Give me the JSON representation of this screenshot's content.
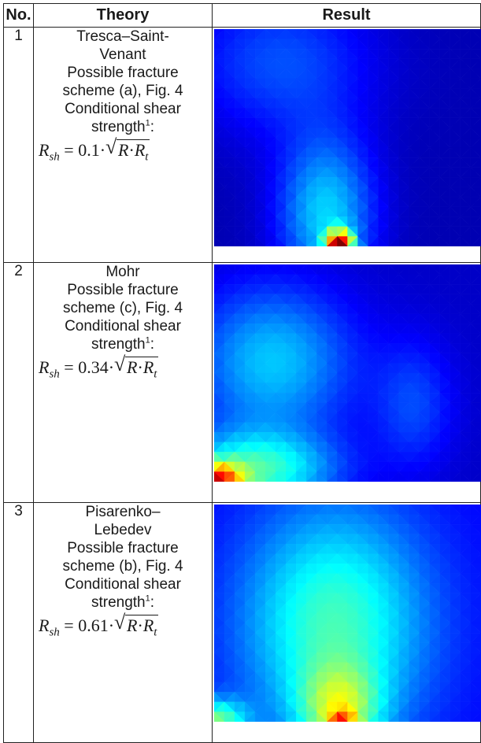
{
  "table": {
    "headers": [
      "No.",
      "Theory",
      "Result"
    ],
    "rows": [
      {
        "no": "1",
        "theory_lines": [
          "Tresca–Saint-",
          "Venant",
          "Possible fracture",
          "scheme (a), Fig. 4",
          "Conditional shear"
        ],
        "strength_label": "strength",
        "footnote": "1",
        "colon": ":",
        "coefficient": "0.1"
      },
      {
        "no": "2",
        "theory_lines": [
          "Mohr",
          "Possible fracture",
          "scheme (c), Fig. 4",
          "Conditional shear"
        ],
        "strength_label": "strength",
        "footnote": "1",
        "colon": ":",
        "coefficient": "0.34"
      },
      {
        "no": "3",
        "theory_lines": [
          "Pisarenko–",
          "Lebedev",
          "Possible fracture",
          "scheme (b), Fig. 4",
          "Conditional shear"
        ],
        "strength_label": "strength",
        "footnote": "1",
        "colon": ":",
        "coefficient": "0.61"
      }
    ]
  },
  "formula": {
    "lhs": "R",
    "lhs_sub": "sh",
    "equals": "=",
    "dot": "·",
    "radicand_a": "R",
    "radicand_b": "R",
    "radicand_b_sub": "t"
  },
  "colormap": [
    "#00007f",
    "#0000ff",
    "#0080ff",
    "#00ffff",
    "#80ff80",
    "#ffff00",
    "#ff8000",
    "#ff0000",
    "#7f0000"
  ]
}
